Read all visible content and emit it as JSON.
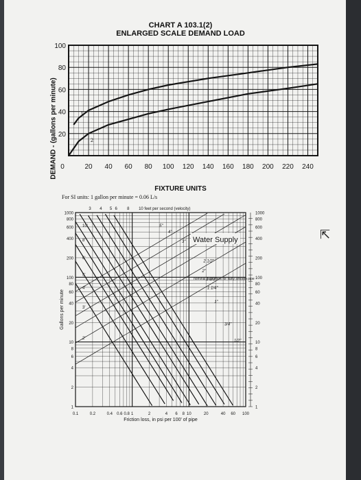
{
  "colors": {
    "paper": "#f2f2f0",
    "ink": "#151515",
    "background": "#3a3d42"
  },
  "cursor_icon": "mouse-pointer-icon",
  "chart_data": [
    {
      "type": "line",
      "title": "CHART A 103.1(2)",
      "subtitle": "ENLARGED SCALE DEMAND LOAD",
      "xlabel": "FIXTURE UNITS",
      "ylabel": "DEMAND - (gallons per minute)",
      "xlim": [
        0,
        250
      ],
      "ylim": [
        0,
        100
      ],
      "x_ticks": [
        "20",
        "40",
        "60",
        "80",
        "100",
        "120",
        "140",
        "160",
        "180",
        "200",
        "220",
        "240"
      ],
      "x_zero_label": "0",
      "y_ticks": [
        "20",
        "40",
        "60",
        "80",
        "100"
      ],
      "grid": true,
      "series": [
        {
          "name": "1",
          "x": [
            5,
            10,
            20,
            40,
            60,
            80,
            100,
            140,
            180,
            220,
            250
          ],
          "y": [
            28,
            34,
            41,
            49,
            55,
            60,
            64,
            70,
            75,
            80,
            83
          ]
        },
        {
          "name": "2",
          "x": [
            0,
            10,
            20,
            40,
            60,
            80,
            100,
            140,
            180,
            220,
            250
          ],
          "y": [
            0,
            13,
            20,
            28,
            33,
            38,
            42,
            49,
            56,
            61,
            65
          ]
        }
      ]
    },
    {
      "type": "line",
      "subtitle": "For SI units: 1 gallon per minute = 0.06 L/s",
      "annotation": "Water Supply",
      "xlabel": "Friction loss, in psi per 100' of pipe",
      "ylabel": "Gallons per minute",
      "xscale": "log",
      "yscale": "log",
      "xlim": [
        0.1,
        100
      ],
      "ylim": [
        1,
        1000
      ],
      "x_ticks": [
        "0.1",
        "0.2",
        "0.4",
        "0.6",
        "0.8",
        "1",
        "2",
        "4",
        "6",
        "8",
        "10",
        "20",
        "40",
        "60",
        "100"
      ],
      "y_ticks_left": [
        "1000",
        "800",
        "600",
        "400",
        "200",
        "100",
        "80",
        "60",
        "40",
        "20",
        "10",
        "8",
        "6",
        "4",
        "2",
        "1"
      ],
      "y_ticks_right": [
        "1000",
        "800",
        "600",
        "400",
        "200",
        "100",
        "80",
        "60",
        "40",
        "20",
        "10",
        "8",
        "6",
        "4",
        "2",
        "1"
      ],
      "velocity_label": "10 feet per second (velocity)",
      "velocity_ticks": [
        "3",
        "4",
        "5",
        "6",
        "8"
      ],
      "velocity_left": [
        "10'",
        "8'",
        "6'",
        "5'",
        "4'",
        "3'",
        "2'"
      ],
      "pipe_header": "nominal diameters for fairly smooth pipe",
      "pipe_labels": [
        "5\"",
        "4\"",
        "3\"",
        "2 1/2\"",
        "2\"",
        "1 1/2\"",
        "1 1/4\"",
        "1\"",
        "3/4\"",
        "1/2\""
      ],
      "grid": true
    }
  ]
}
